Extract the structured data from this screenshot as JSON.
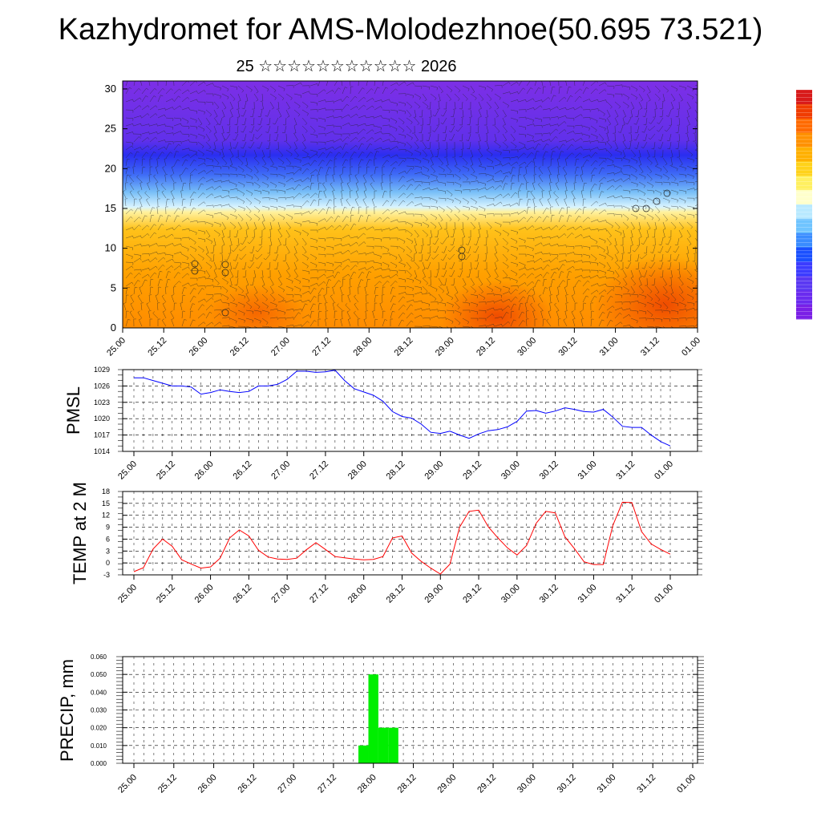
{
  "title": "Kazhydromet for AMS-Molodezhnoe(50.695 73.521)",
  "subtitle": "25 ☆☆☆☆☆☆☆☆☆☆☆ 2026",
  "x_ticks": [
    "25.00",
    "25.12",
    "26.00",
    "26.12",
    "27.00",
    "27.12",
    "28.00",
    "28.12",
    "29.00",
    "29.12",
    "30.00",
    "30.12",
    "31.00",
    "31.12",
    "01.00"
  ],
  "colors": {
    "pmsl": "#0000ff",
    "temp": "#ff0000",
    "precip": "#00ee00"
  },
  "chart_data": [
    {
      "type": "heatmap",
      "name": "wind-field",
      "ylim": [
        0,
        31
      ],
      "y_ticks": [
        0,
        5,
        10,
        15,
        20,
        25,
        30
      ],
      "x_ticks": [
        "25.00",
        "25.12",
        "26.00",
        "26.12",
        "27.00",
        "27.12",
        "28.00",
        "28.12",
        "29.00",
        "29.12",
        "30.00",
        "30.12",
        "31.00",
        "31.12",
        "01.00"
      ],
      "colorbar": [
        "#7a1fe6",
        "#6a2bef",
        "#5a38f2",
        "#3c3cff",
        "#1a50ff",
        "#3a8cff",
        "#6fc4ff",
        "#b9e9ff",
        "#ffffcc",
        "#fff060",
        "#ffd21a",
        "#ffb000",
        "#ff9100",
        "#ff6a00",
        "#f03c00",
        "#d81a1a"
      ]
    },
    {
      "type": "line",
      "ylabel": "PMSL",
      "ylim": [
        1014,
        1029
      ],
      "y_ticks": [
        1014,
        1017,
        1020,
        1023,
        1026,
        1029
      ],
      "x": [
        0,
        0.25,
        0.5,
        0.75,
        1,
        1.25,
        1.5,
        1.75,
        2,
        2.25,
        2.5,
        2.75,
        3,
        3.25,
        3.5,
        3.75,
        4,
        4.25,
        4.5,
        4.75,
        5,
        5.25,
        5.5,
        5.75,
        6,
        6.25,
        6.5,
        6.75,
        7,
        7.25,
        7.5,
        7.75,
        8,
        8.25,
        8.5,
        8.75,
        9,
        9.25,
        9.5,
        9.75,
        10,
        10.25,
        10.5,
        10.75,
        11,
        11.25,
        11.5,
        11.75,
        12,
        12.25,
        12.5,
        12.75,
        13,
        13.25,
        13.5,
        13.75,
        14
      ],
      "values": [
        1027.5,
        1027.5,
        1027,
        1026.5,
        1026,
        1026,
        1025.8,
        1024.5,
        1024.8,
        1025.3,
        1025,
        1024.8,
        1025,
        1026,
        1026,
        1026.3,
        1027.2,
        1028.7,
        1028.7,
        1028.5,
        1028.6,
        1028.9,
        1027,
        1025.5,
        1024.9,
        1024.3,
        1023.2,
        1021.3,
        1020.4,
        1020.1,
        1019,
        1017.5,
        1017.3,
        1017.7,
        1017,
        1016.4,
        1017.2,
        1017.8,
        1018,
        1018.5,
        1019.5,
        1021.4,
        1021.5,
        1021,
        1021.4,
        1022,
        1021.7,
        1021.3,
        1021.2,
        1021.7,
        1020.3,
        1018.6,
        1018.4,
        1018.4,
        1017,
        1015.8,
        1015
      ]
    },
    {
      "type": "line",
      "ylabel": "TEMP at 2 M",
      "ylim": [
        -3,
        18
      ],
      "y_ticks": [
        -3,
        0,
        3,
        6,
        9,
        12,
        15,
        18
      ],
      "x": [
        0,
        0.25,
        0.5,
        0.75,
        1,
        1.25,
        1.5,
        1.75,
        2,
        2.25,
        2.5,
        2.75,
        3,
        3.25,
        3.5,
        3.75,
        4,
        4.25,
        4.5,
        4.75,
        5,
        5.25,
        5.5,
        5.75,
        6,
        6.25,
        6.5,
        6.75,
        7,
        7.25,
        7.5,
        7.75,
        8,
        8.25,
        8.5,
        8.75,
        9,
        9.25,
        9.5,
        9.75,
        10,
        10.25,
        10.5,
        10.75,
        11,
        11.25,
        11.5,
        11.75,
        12,
        12.25,
        12.5,
        12.75,
        13,
        13.25,
        13.5,
        13.75,
        14
      ],
      "values": [
        -2.2,
        -1.2,
        3.5,
        6,
        4.2,
        0.8,
        -0.3,
        -1.3,
        -1,
        1.2,
        6.3,
        8.3,
        6.8,
        3.2,
        1.5,
        1,
        0.9,
        1.2,
        3.3,
        5.1,
        3.4,
        1.6,
        1.3,
        1,
        0.8,
        0.9,
        1.6,
        6.3,
        6.8,
        2.5,
        0.4,
        -1.3,
        -2.8,
        -0.3,
        9,
        13,
        13.3,
        9.1,
        6.3,
        3.8,
        2,
        4.4,
        10,
        13,
        12.6,
        6.6,
        3.6,
        0.3,
        -0.4,
        -0.4,
        9.4,
        15.3,
        15.2,
        7.9,
        4.8,
        3.4,
        2.2
      ]
    },
    {
      "type": "bar",
      "ylabel": "PRECIP, mm",
      "ylim": [
        0,
        0.06
      ],
      "y_ticks": [
        "0.000",
        "0.010",
        "0.020",
        "0.030",
        "0.040",
        "0.050",
        "0.060"
      ],
      "x": [
        5.75,
        6.0,
        6.25,
        6.5
      ],
      "bar_width": 0.25,
      "values": [
        0.01,
        0.05,
        0.02,
        0.02
      ]
    }
  ]
}
